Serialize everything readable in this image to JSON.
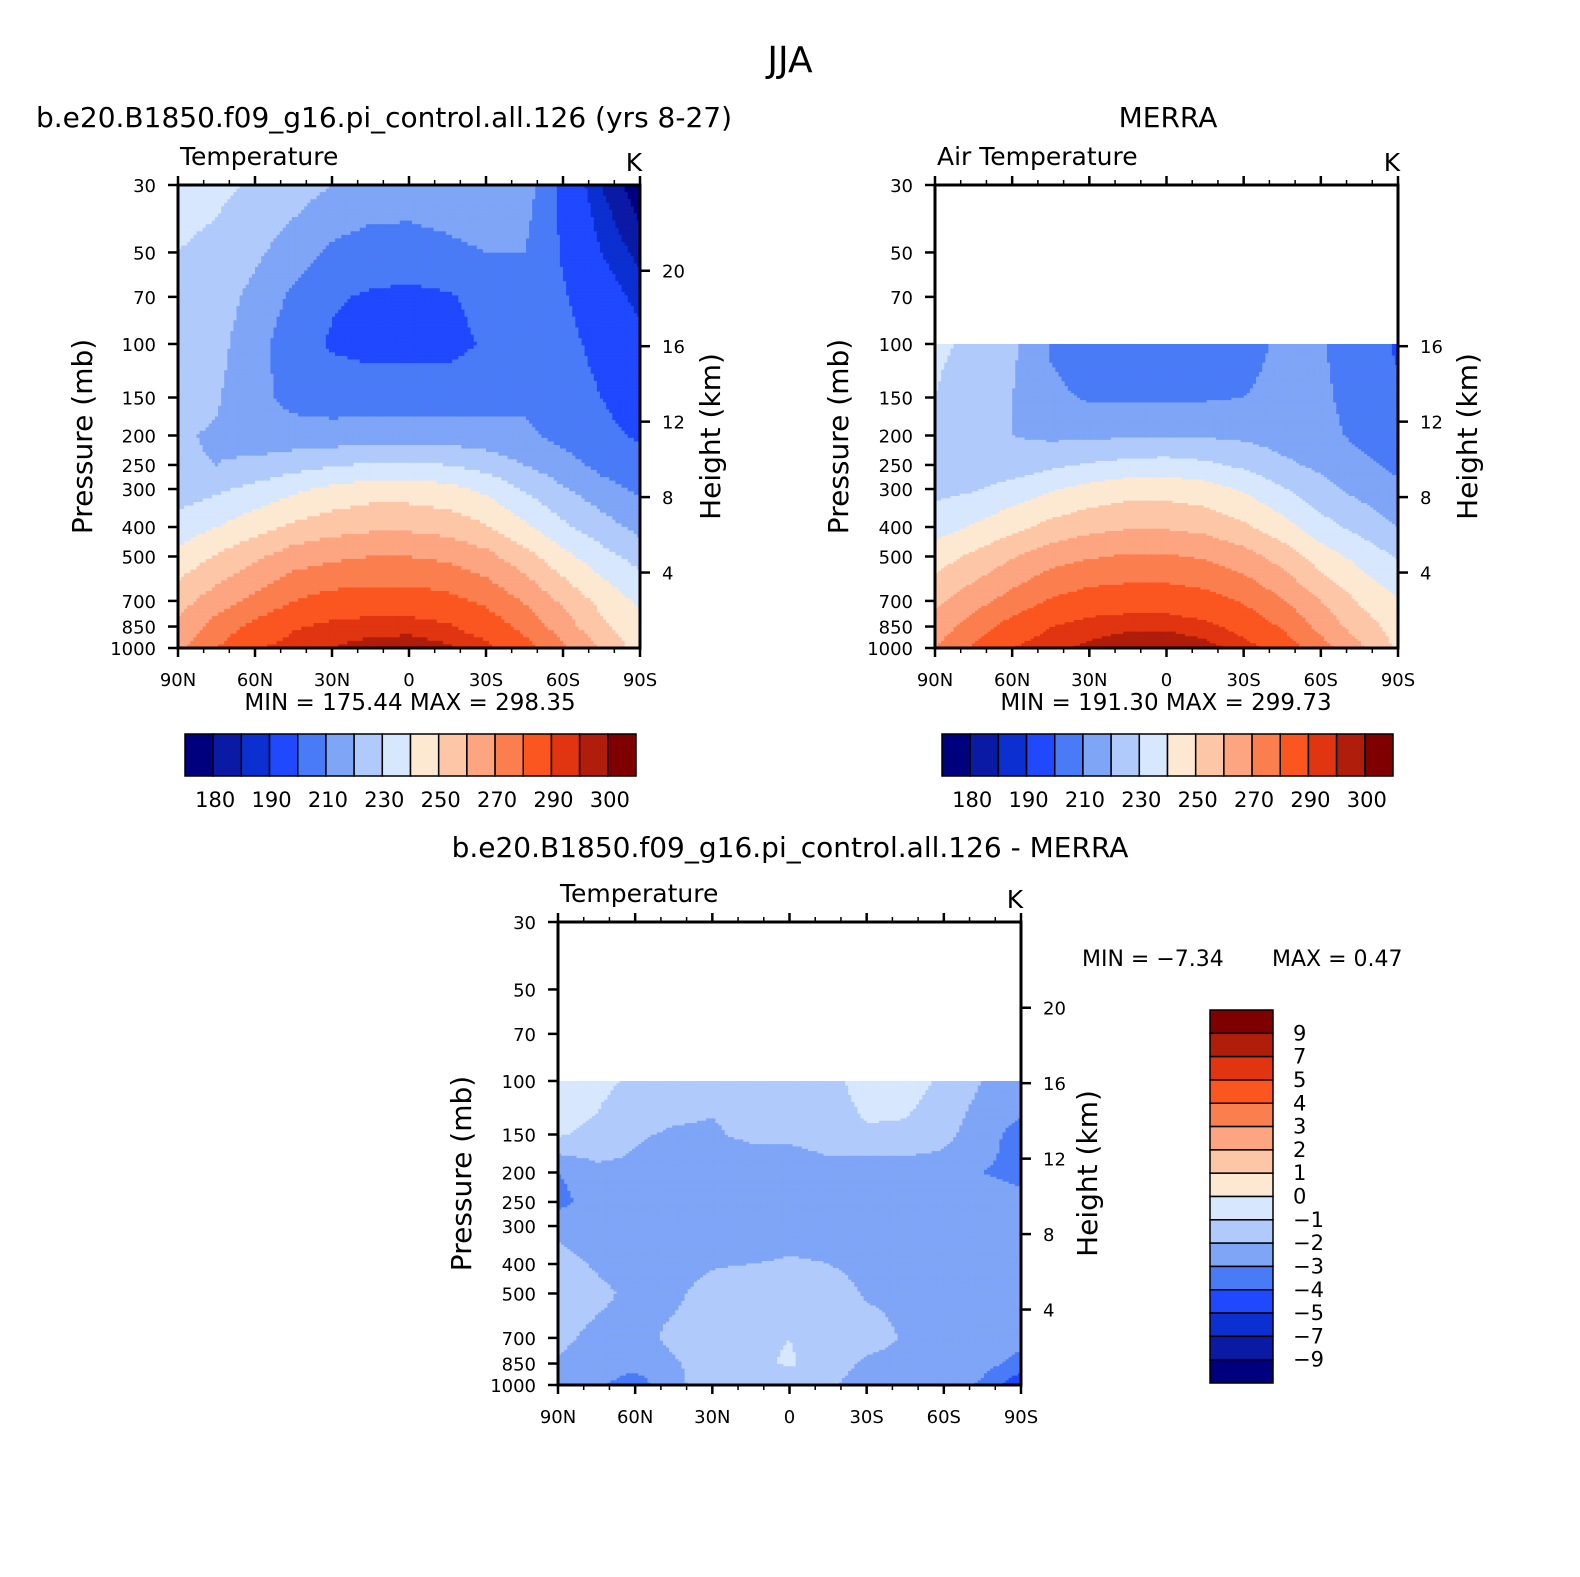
{
  "figure": {
    "title": "JJA",
    "left_title": "b.e20.B1850.f09_g16.pi_control.all.126 (yrs 8-27)",
    "right_title": "MERRA",
    "diff_title": "b.e20.B1850.f09_g16.pi_control.all.126 - MERRA"
  },
  "chart_data": [
    {
      "type": "heatmap",
      "name": "model-temperature",
      "subtitle": "Temperature",
      "units": "K",
      "xlabel": "",
      "ylabel": "Pressure (mb)",
      "y2label": "Height (km)",
      "x_ticks": [
        "90N",
        "60N",
        "30N",
        "0",
        "30S",
        "60S",
        "90S"
      ],
      "y_ticks": [
        30,
        50,
        70,
        100,
        150,
        200,
        250,
        300,
        400,
        500,
        700,
        850,
        1000
      ],
      "y2_ticks": [
        20,
        16,
        12,
        8,
        4
      ],
      "y_scale": "log",
      "ylim": [
        1000,
        30
      ],
      "xlim": [
        90,
        -90
      ],
      "stats": "MIN =  175.44   MAX =  298.35",
      "min": 175.44,
      "max": 298.35,
      "colorbar_labels": [
        "180",
        "190",
        "210",
        "230",
        "250",
        "270",
        "290",
        "300"
      ],
      "levels": [
        180,
        185,
        190,
        200,
        210,
        220,
        230,
        240,
        250,
        260,
        270,
        280,
        290,
        295,
        300
      ],
      "lat": [
        90,
        75,
        60,
        45,
        30,
        15,
        0,
        -15,
        -30,
        -45,
        -60,
        -75,
        -90
      ],
      "plev": [
        1000,
        850,
        700,
        500,
        400,
        300,
        250,
        200,
        150,
        100,
        70,
        50,
        30
      ],
      "field": [
        [
          268,
          280,
          289,
          293,
          295,
          297,
          298,
          296,
          292,
          284,
          272,
          259,
          245
        ],
        [
          262,
          274,
          283,
          289,
          292,
          293,
          293,
          291,
          286,
          277,
          265,
          252,
          243
        ],
        [
          256,
          265,
          273,
          280,
          284,
          285,
          285,
          283,
          278,
          269,
          258,
          247,
          238
        ],
        [
          243,
          251,
          258,
          265,
          268,
          270,
          270,
          268,
          263,
          254,
          243,
          234,
          226
        ],
        [
          234,
          240,
          246,
          252,
          256,
          258,
          258,
          256,
          251,
          242,
          232,
          224,
          217
        ],
        [
          225,
          228,
          233,
          238,
          242,
          245,
          245,
          243,
          238,
          229,
          221,
          214,
          208
        ],
        [
          221,
          220,
          222,
          226,
          229,
          231,
          232,
          230,
          226,
          220,
          214,
          207,
          203
        ],
        [
          221,
          219,
          215,
          214,
          214,
          215,
          215,
          215,
          214,
          212,
          207,
          202,
          199
        ],
        [
          224,
          221,
          213,
          207,
          205,
          205,
          205,
          205,
          206,
          208,
          205,
          200,
          196
        ],
        [
          226,
          223,
          214,
          204,
          199,
          197,
          197,
          197,
          201,
          206,
          203,
          197,
          192
        ],
        [
          228,
          225,
          217,
          208,
          201,
          199,
          198,
          199,
          203,
          208,
          201,
          194,
          188
        ],
        [
          230,
          228,
          222,
          215,
          208,
          205,
          205,
          207,
          210,
          210,
          199,
          190,
          183
        ],
        [
          233,
          232,
          229,
          225,
          220,
          217,
          216,
          218,
          220,
          215,
          197,
          185,
          176
        ]
      ]
    },
    {
      "type": "heatmap",
      "name": "merra-air-temperature",
      "subtitle": "Air Temperature",
      "units": "K",
      "xlabel": "",
      "ylabel": "Pressure (mb)",
      "y2label": "Height (km)",
      "x_ticks": [
        "90N",
        "60N",
        "30N",
        "0",
        "30S",
        "60S",
        "90S"
      ],
      "y_ticks": [
        30,
        50,
        70,
        100,
        150,
        200,
        250,
        300,
        400,
        500,
        700,
        850,
        1000
      ],
      "y2_ticks": [
        16,
        12,
        8,
        4
      ],
      "y_scale": "log",
      "ylim": [
        1000,
        30
      ],
      "xlim": [
        90,
        -90
      ],
      "data_top_plev": 100,
      "stats": "MIN =  191.30   MAX =  299.73",
      "min": 191.3,
      "max": 299.73,
      "colorbar_labels": [
        "180",
        "190",
        "210",
        "230",
        "250",
        "270",
        "290",
        "300"
      ],
      "levels": [
        180,
        185,
        190,
        200,
        210,
        220,
        230,
        240,
        250,
        260,
        270,
        280,
        290,
        295,
        300
      ],
      "lat": [
        90,
        75,
        60,
        45,
        30,
        15,
        0,
        -15,
        -30,
        -45,
        -60,
        -75,
        -90
      ],
      "plev": [
        1000,
        850,
        700,
        500,
        400,
        300,
        250,
        200,
        150,
        100
      ],
      "field": [
        [
          270,
          281,
          290,
          294,
          296,
          298,
          299,
          297,
          293,
          286,
          274,
          262,
          248
        ],
        [
          264,
          275,
          284,
          290,
          293,
          294,
          294,
          292,
          287,
          279,
          267,
          255,
          246
        ],
        [
          258,
          266,
          274,
          281,
          285,
          286,
          286,
          284,
          279,
          271,
          260,
          249,
          241
        ],
        [
          245,
          252,
          259,
          266,
          269,
          271,
          271,
          269,
          264,
          256,
          245,
          237,
          229
        ],
        [
          236,
          241,
          247,
          253,
          257,
          259,
          259,
          257,
          252,
          244,
          234,
          227,
          220
        ],
        [
          227,
          229,
          234,
          239,
          243,
          246,
          246,
          244,
          239,
          231,
          223,
          217,
          212
        ],
        [
          225,
          223,
          224,
          228,
          231,
          233,
          234,
          232,
          228,
          222,
          218,
          212,
          208
        ],
        [
          228,
          225,
          220,
          218,
          218,
          219,
          219,
          219,
          218,
          216,
          213,
          208,
          204
        ],
        [
          230,
          227,
          220,
          212,
          209,
          209,
          209,
          209,
          210,
          213,
          212,
          206,
          201
        ],
        [
          231,
          229,
          222,
          209,
          204,
          202,
          202,
          202,
          206,
          212,
          211,
          204,
          199
        ]
      ]
    },
    {
      "type": "heatmap",
      "name": "model-minus-merra-temperature",
      "subtitle": "Temperature",
      "units": "K",
      "xlabel": "",
      "ylabel": "Pressure (mb)",
      "y2label": "Height (km)",
      "x_ticks": [
        "90N",
        "60N",
        "30N",
        "0",
        "30S",
        "60S",
        "90S"
      ],
      "y_ticks": [
        30,
        50,
        70,
        100,
        150,
        200,
        250,
        300,
        400,
        500,
        700,
        850,
        1000
      ],
      "y2_ticks": [
        20,
        16,
        12,
        8,
        4
      ],
      "y_scale": "log",
      "ylim": [
        1000,
        30
      ],
      "xlim": [
        90,
        -90
      ],
      "data_top_plev": 100,
      "stats_min": "MIN =   -7.34",
      "stats_max": "MAX =    0.47",
      "min": -7.34,
      "max": 0.47,
      "colorbar_labels": [
        "9",
        "7",
        "5",
        "4",
        "3",
        "2",
        "1",
        "0",
        "-1",
        "-2",
        "-3",
        "-4",
        "-5",
        "-7",
        "-9"
      ],
      "levels": [
        -9,
        -7,
        -5,
        -4,
        -3,
        -2,
        -1,
        0,
        1,
        2,
        3,
        4,
        5,
        7,
        9
      ],
      "lat": [
        90,
        75,
        60,
        45,
        30,
        15,
        0,
        -15,
        -30,
        -45,
        -60,
        -75,
        -90
      ],
      "plev": [
        1000,
        850,
        700,
        500,
        400,
        300,
        250,
        200,
        150,
        100
      ],
      "field": [
        [
          -2.2,
          -2.8,
          -3.6,
          -2.2,
          -1.6,
          -2.0,
          -1.4,
          -1.8,
          -2.6,
          -2.4,
          -2.4,
          -3.2,
          -4.8
        ],
        [
          -2.1,
          -2.4,
          -2.6,
          -2.1,
          -1.6,
          -1.2,
          -0.9,
          -1.4,
          -2.2,
          -2.3,
          -2.4,
          -2.6,
          -3.4
        ],
        [
          -1.8,
          -2.2,
          -2.3,
          -1.8,
          -1.4,
          -1.2,
          -1.0,
          -1.4,
          -1.6,
          -2.1,
          -2.2,
          -2.4,
          -2.6
        ],
        [
          -1.6,
          -1.8,
          -2.2,
          -2.2,
          -1.6,
          -1.3,
          -1.2,
          -1.5,
          -2.1,
          -2.2,
          -2.1,
          -2.2,
          -2.3
        ],
        [
          -1.7,
          -2.1,
          -2.4,
          -2.4,
          -2.1,
          -2.0,
          -1.9,
          -2.0,
          -2.3,
          -2.3,
          -2.2,
          -2.1,
          -2.2
        ],
        [
          -2.2,
          -2.5,
          -2.6,
          -2.4,
          -2.6,
          -2.6,
          -2.4,
          -2.3,
          -2.5,
          -2.4,
          -2.1,
          -2.2,
          -2.3
        ],
        [
          -3.4,
          -2.4,
          -2.5,
          -2.6,
          -2.5,
          -2.5,
          -2.6,
          -2.5,
          -2.6,
          -2.5,
          -2.3,
          -2.6,
          -2.8
        ],
        [
          -3.0,
          -2.3,
          -2.2,
          -2.5,
          -2.6,
          -2.7,
          -2.6,
          -2.4,
          -2.7,
          -2.6,
          -2.5,
          -3.0,
          -3.2
        ],
        [
          -0.9,
          -1.2,
          -1.9,
          -2.1,
          -2.1,
          -1.8,
          -1.8,
          -1.5,
          -1.1,
          -1.2,
          -1.7,
          -2.6,
          -3.4
        ],
        [
          -0.5,
          -0.7,
          -1.2,
          -1.5,
          -1.8,
          -1.7,
          -1.6,
          -1.3,
          -0.6,
          -0.5,
          -1.2,
          -2.0,
          -2.2
        ]
      ]
    }
  ]
}
